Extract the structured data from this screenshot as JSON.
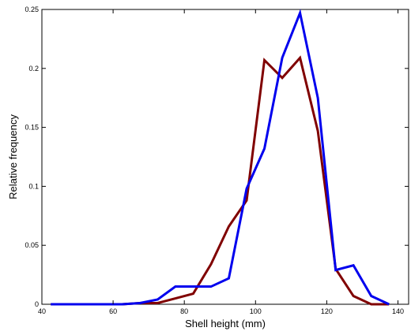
{
  "chart_data": {
    "type": "line",
    "title": "",
    "xlabel": "Shell height (mm)",
    "ylabel": "Relative frequency",
    "xlim": [
      40,
      143
    ],
    "ylim": [
      0,
      0.25
    ],
    "x_ticks": [
      {
        "value": 40,
        "label": "40"
      },
      {
        "value": 60,
        "label": "60"
      },
      {
        "value": 80,
        "label": "80"
      },
      {
        "value": 100,
        "label": "100"
      },
      {
        "value": 120,
        "label": "120"
      },
      {
        "value": 140,
        "label": "140"
      }
    ],
    "y_ticks": [
      {
        "value": 0,
        "label": "0"
      },
      {
        "value": 0.05,
        "label": "0.05"
      },
      {
        "value": 0.1,
        "label": "0.1"
      },
      {
        "value": 0.15,
        "label": "0.15"
      },
      {
        "value": 0.2,
        "label": "0.2"
      },
      {
        "value": 0.25,
        "label": "0.25"
      }
    ],
    "grid": false,
    "legend": "none",
    "series": [
      {
        "color": "#800000",
        "x": [
          42.5,
          47.5,
          52.5,
          57.5,
          62.5,
          67.5,
          72.5,
          77.5,
          82.5,
          87.5,
          92.5,
          97.5,
          102.5,
          107.5,
          112.5,
          117.5,
          122.5,
          127.5,
          132.5,
          137.5
        ],
        "y": [
          0,
          0,
          0,
          0,
          0,
          0.001,
          0.001,
          0.005,
          0.009,
          0.034,
          0.066,
          0.088,
          0.207,
          0.192,
          0.209,
          0.147,
          0.03,
          0.007,
          0,
          0
        ]
      },
      {
        "color": "#0000ee",
        "x": [
          42.5,
          47.5,
          52.5,
          57.5,
          62.5,
          67.5,
          72.5,
          77.5,
          82.5,
          87.5,
          92.5,
          97.5,
          102.5,
          107.5,
          112.5,
          117.5,
          122.5,
          127.5,
          132.5,
          137.5
        ],
        "y": [
          0,
          0,
          0,
          0,
          0,
          0.001,
          0.004,
          0.015,
          0.015,
          0.015,
          0.022,
          0.098,
          0.132,
          0.209,
          0.247,
          0.175,
          0.029,
          0.033,
          0.007,
          0
        ]
      }
    ]
  }
}
